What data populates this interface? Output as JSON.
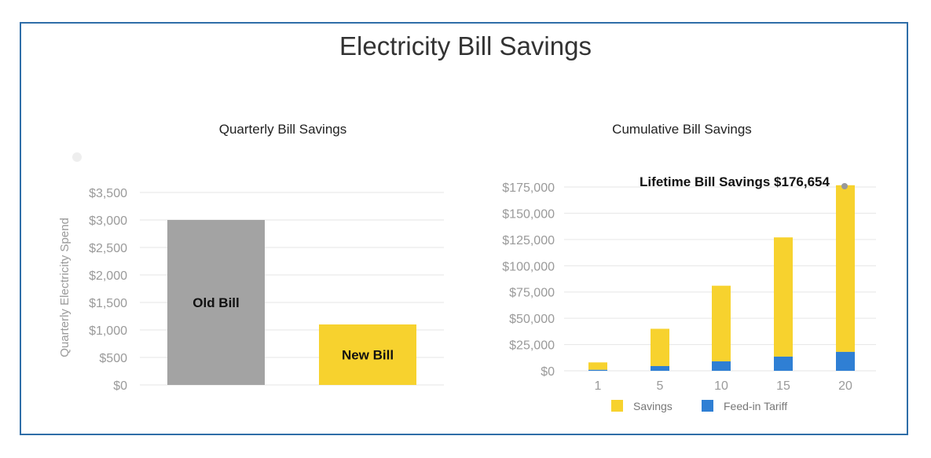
{
  "page": {
    "title": "Electricity Bill Savings"
  },
  "colors": {
    "old_bill": "#a3a3a3",
    "new_bill": "#f7d22e",
    "savings": "#f7d22e",
    "feed_in": "#2f7fd4",
    "grid": "#e6e6e6",
    "frame": "#2f6ea8"
  },
  "chart_data": [
    {
      "type": "bar",
      "title": "Quarterly Bill Savings",
      "ylabel": "Quarterly Electricity Spend",
      "xlabel": "",
      "ylim": [
        0,
        3500
      ],
      "yticks": [
        "$0",
        "$500",
        "$1,000",
        "$1,500",
        "$2,000",
        "$2,500",
        "$3,000",
        "$3,500"
      ],
      "grid": true,
      "categories": [
        "Old Bill",
        "New Bill"
      ],
      "values": [
        3000,
        1100
      ],
      "data_labels": [
        "Old Bill",
        "New Bill"
      ]
    },
    {
      "type": "bar",
      "stacked": true,
      "title": "Cumulative Bill Savings",
      "xlabel": "",
      "ylabel": "",
      "ylim": [
        0,
        175000
      ],
      "yticks": [
        "$0",
        "$25,000",
        "$50,000",
        "$75,000",
        "$100,000",
        "$125,000",
        "$150,000",
        "$175,000"
      ],
      "grid": true,
      "categories": [
        "1",
        "5",
        "10",
        "15",
        "20"
      ],
      "series": [
        {
          "name": "Feed-in Tariff",
          "values": [
            900,
            4500,
            9000,
            13500,
            18000
          ]
        },
        {
          "name": "Savings",
          "values": [
            7100,
            35500,
            72000,
            113500,
            158654
          ]
        }
      ],
      "legend": [
        "Savings",
        "Feed-in Tariff"
      ],
      "legend_position": "bottom",
      "annotation": "Lifetime Bill Savings $176,654"
    }
  ]
}
